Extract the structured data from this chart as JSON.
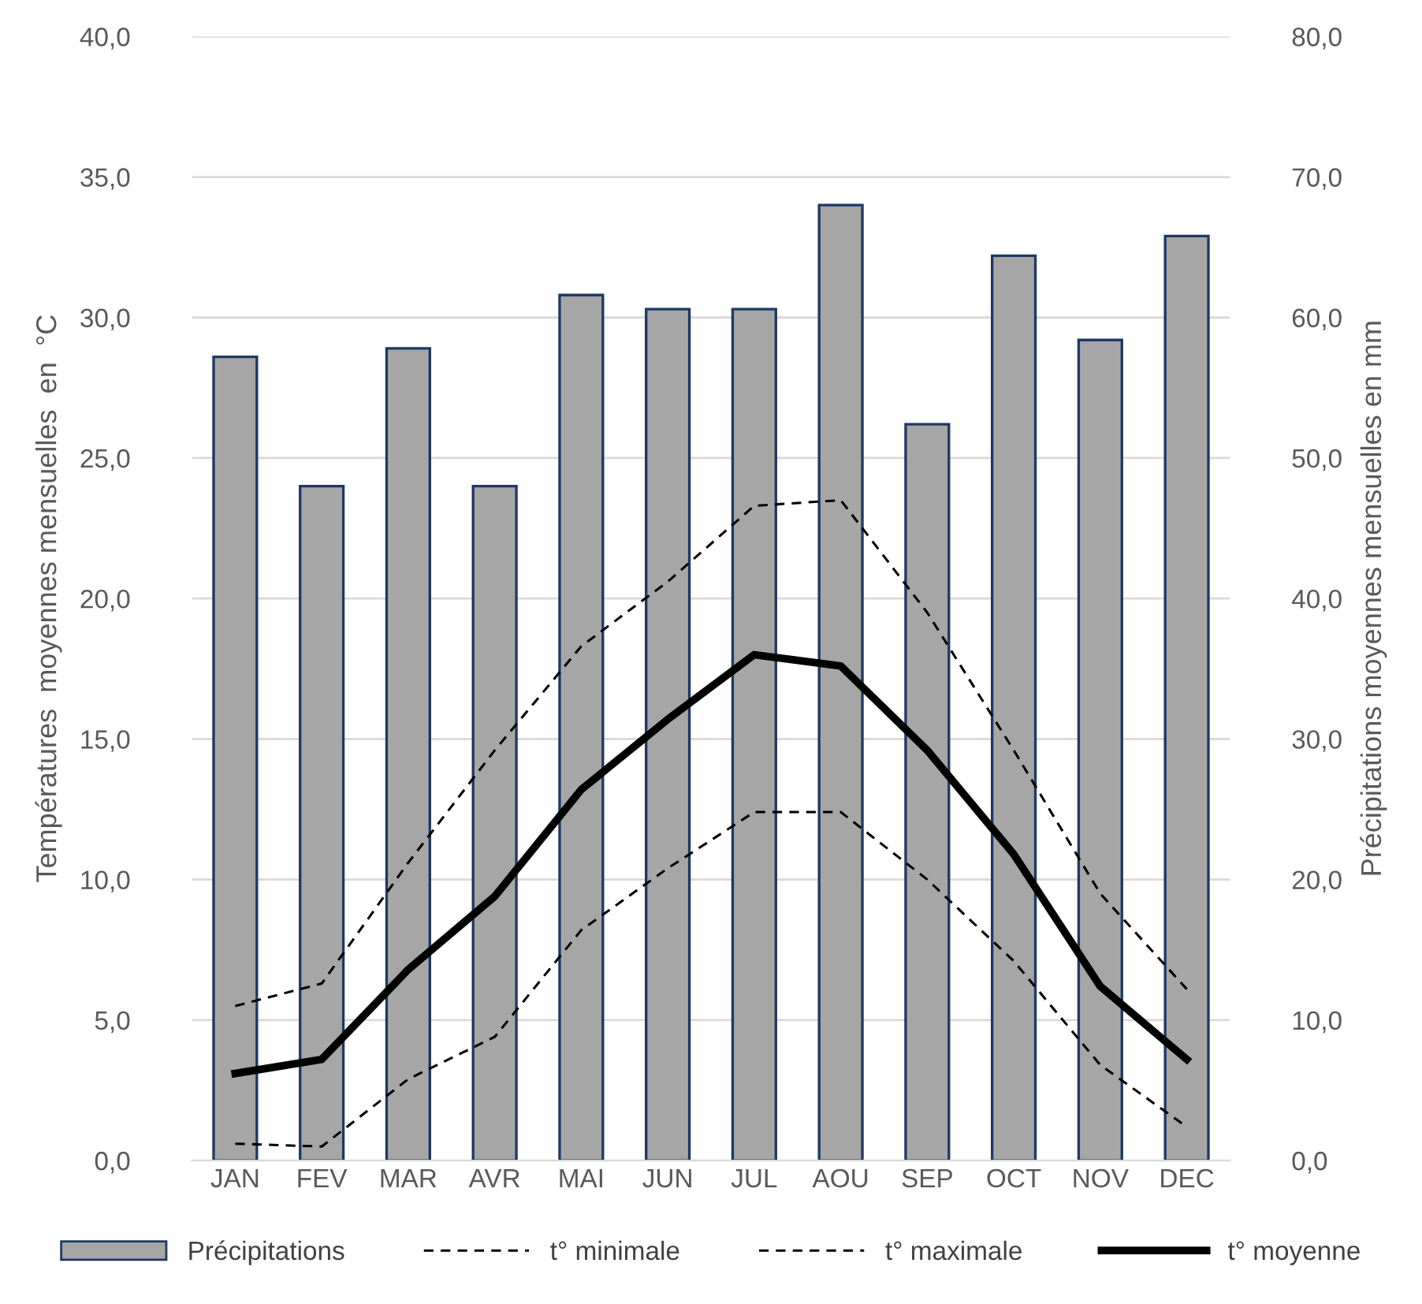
{
  "chart_data": {
    "type": "bar",
    "categories": [
      "JAN",
      "FEV",
      "MAR",
      "AVR",
      "MAI",
      "JUN",
      "JUL",
      "AOU",
      "SEP",
      "OCT",
      "NOV",
      "DEC"
    ],
    "ylabel": "Températures  moyennes mensuelles  en  °C",
    "y2label": "Précipitations moyennes mensuelles en mm",
    "ylim": [
      0,
      40
    ],
    "yticks": [
      {
        "value": 0,
        "label": "0,0"
      },
      {
        "value": 5,
        "label": "5,0"
      },
      {
        "value": 10,
        "label": "10,0"
      },
      {
        "value": 15,
        "label": "15,0"
      },
      {
        "value": 20,
        "label": "20,0"
      },
      {
        "value": 25,
        "label": "25,0"
      },
      {
        "value": 30,
        "label": "30,0"
      },
      {
        "value": 35,
        "label": "35,0"
      },
      {
        "value": 40,
        "label": "40,0"
      }
    ],
    "y2lim": [
      0,
      80
    ],
    "y2ticks": [
      {
        "value": 0,
        "label": "0,0"
      },
      {
        "value": 10,
        "label": "10,0"
      },
      {
        "value": 20,
        "label": "20,0"
      },
      {
        "value": 30,
        "label": "30,0"
      },
      {
        "value": 40,
        "label": "40,0"
      },
      {
        "value": 50,
        "label": "50,0"
      },
      {
        "value": 60,
        "label": "60,0"
      },
      {
        "value": 70,
        "label": "70,0"
      },
      {
        "value": 80,
        "label": "80,0"
      }
    ],
    "grid": "y",
    "legend": "bottom",
    "series": [
      {
        "name": "Précipitations",
        "axis": "y2",
        "color": "#a6a6a6",
        "values": [
          57.2,
          48.0,
          57.8,
          48.0,
          61.6,
          60.6,
          60.6,
          68.0,
          52.4,
          64.4,
          58.4,
          65.8
        ]
      },
      {
        "name": "t° minimale",
        "type": "line",
        "line_style": "dashed",
        "color": "#000000",
        "values": [
          0.6,
          0.5,
          2.9,
          4.4,
          8.2,
          10.4,
          12.4,
          12.4,
          10.0,
          7.1,
          3.4,
          1.2
        ]
      },
      {
        "name": "t° maximale",
        "type": "line",
        "line_style": "dashed",
        "color": "#000000",
        "values": [
          5.5,
          6.3,
          10.6,
          14.6,
          18.3,
          20.6,
          23.3,
          23.5,
          19.5,
          14.6,
          9.5,
          6.1
        ]
      },
      {
        "name": "t° moyenne",
        "type": "line",
        "line_style": "solid",
        "color": "#000000",
        "values": [
          3.1,
          3.6,
          6.8,
          9.4,
          13.2,
          15.7,
          18.0,
          17.6,
          14.6,
          10.9,
          6.2,
          3.6
        ]
      }
    ]
  }
}
